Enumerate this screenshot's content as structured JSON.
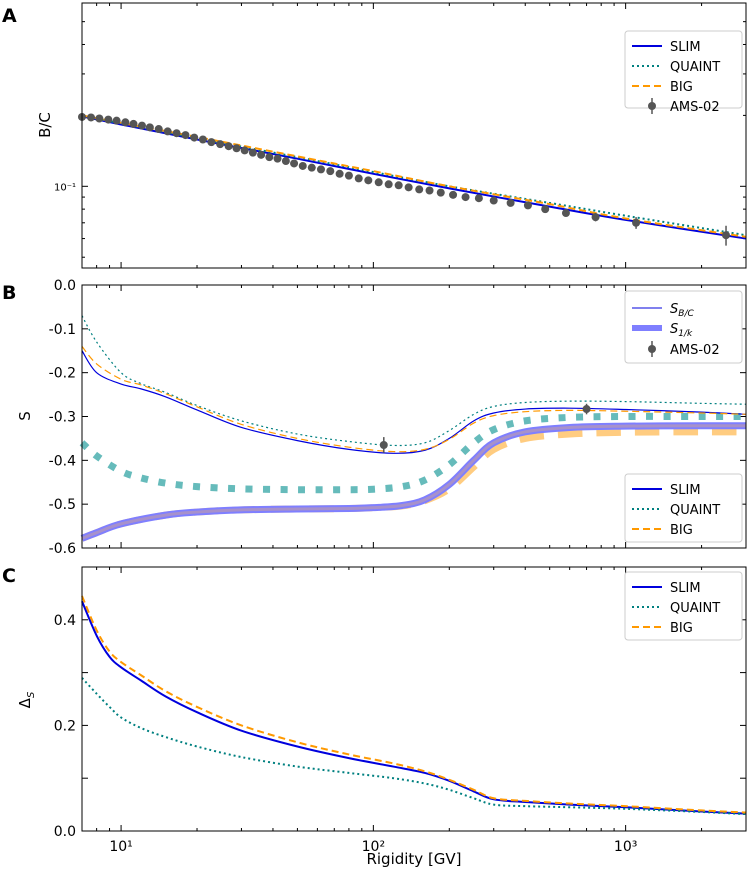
{
  "colors": {
    "slim": "#0000dd",
    "quaint": "#008080",
    "big": "#ff9900",
    "ams": "#555555",
    "s1k_slim": "#7f7fff",
    "s1k_quaint": "#66bbbb",
    "s1k_big": "#ffcc80"
  },
  "chart_data": [
    {
      "panel": "A",
      "type": "line",
      "title": "",
      "xlabel": "",
      "ylabel": "B/C",
      "xscale": "log",
      "yscale": "log",
      "xlim": [
        7,
        3000
      ],
      "ylim": [
        0.045,
        0.6
      ],
      "ytick_labels": [
        "10⁻¹"
      ],
      "legend": {
        "placement": "top-right",
        "entries": [
          "SLIM",
          "QUAINT",
          "BIG",
          "AMS-02"
        ]
      },
      "series": [
        {
          "name": "SLIM",
          "style": "solid",
          "x": [
            7,
            10,
            20,
            50,
            100,
            200,
            500,
            1000,
            3000
          ],
          "y": [
            0.198,
            0.183,
            0.158,
            0.131,
            0.113,
            0.098,
            0.082,
            0.072,
            0.06
          ]
        },
        {
          "name": "QUAINT",
          "style": "dotted",
          "x": [
            7,
            10,
            20,
            50,
            100,
            200,
            500,
            1000,
            3000
          ],
          "y": [
            0.199,
            0.185,
            0.16,
            0.133,
            0.115,
            0.1,
            0.085,
            0.075,
            0.062
          ]
        },
        {
          "name": "BIG",
          "style": "dashed",
          "x": [
            7,
            10,
            20,
            50,
            100,
            200,
            500,
            1000,
            3000
          ],
          "y": [
            0.2,
            0.186,
            0.162,
            0.134,
            0.116,
            0.1,
            0.084,
            0.073,
            0.061
          ]
        }
      ],
      "points": {
        "name": "AMS-02",
        "x": [
          7.0,
          7.6,
          8.2,
          8.9,
          9.6,
          10.4,
          11.2,
          12.1,
          13.0,
          14.1,
          15.3,
          16.6,
          18.0,
          19.5,
          21.1,
          22.8,
          24.7,
          26.7,
          28.7,
          30.9,
          33.3,
          35.9,
          38.7,
          41.7,
          45.0,
          48.5,
          52.5,
          57.0,
          62.0,
          67.5,
          73.5,
          80.0,
          87.5,
          95.5,
          105,
          115,
          126,
          138,
          152,
          167,
          185,
          207,
          232,
          262,
          300,
          350,
          410,
          480,
          580,
          760,
          1100,
          2500
        ],
        "y": [
          0.197,
          0.196,
          0.194,
          0.192,
          0.19,
          0.187,
          0.184,
          0.181,
          0.178,
          0.175,
          0.171,
          0.168,
          0.165,
          0.161,
          0.158,
          0.154,
          0.151,
          0.148,
          0.145,
          0.142,
          0.139,
          0.136,
          0.133,
          0.131,
          0.128,
          0.125,
          0.122,
          0.12,
          0.118,
          0.116,
          0.113,
          0.111,
          0.108,
          0.106,
          0.104,
          0.102,
          0.101,
          0.099,
          0.097,
          0.096,
          0.094,
          0.092,
          0.09,
          0.089,
          0.087,
          0.085,
          0.083,
          0.08,
          0.077,
          0.074,
          0.07,
          0.062
        ],
        "yerr": [
          0.002,
          0.002,
          0.002,
          0.002,
          0.002,
          0.002,
          0.002,
          0.002,
          0.002,
          0.002,
          0.002,
          0.002,
          0.002,
          0.002,
          0.002,
          0.002,
          0.002,
          0.002,
          0.002,
          0.002,
          0.002,
          0.002,
          0.002,
          0.002,
          0.002,
          0.002,
          0.002,
          0.002,
          0.002,
          0.002,
          0.002,
          0.002,
          0.002,
          0.002,
          0.002,
          0.002,
          0.002,
          0.002,
          0.002,
          0.002,
          0.002,
          0.002,
          0.002,
          0.002,
          0.002,
          0.002,
          0.002,
          0.002,
          0.002,
          0.003,
          0.004,
          0.006
        ]
      }
    },
    {
      "panel": "B",
      "type": "line",
      "title": "",
      "xlabel": "",
      "ylabel": "S",
      "xscale": "log",
      "yscale": "linear",
      "xlim": [
        7,
        3000
      ],
      "ylim": [
        -0.6,
        0.0
      ],
      "ytick_labels": [
        "0.0",
        "-0.1",
        "-0.2",
        "-0.3",
        "-0.4",
        "-0.5",
        "-0.6"
      ],
      "legend_top": {
        "placement": "top-right",
        "entries": [
          "S_B/C",
          "S_1/k",
          "AMS-02"
        ],
        "sub_bc": "B/C",
        "sub_1k": "1/k"
      },
      "legend_bottom": {
        "placement": "bottom-right",
        "entries": [
          "SLIM",
          "QUAINT",
          "BIG"
        ]
      },
      "series_sbc": [
        {
          "name": "SLIM",
          "style": "solid",
          "x": [
            7,
            8,
            10,
            12,
            15,
            20,
            30,
            50,
            80,
            120,
            160,
            200,
            250,
            300,
            400,
            600,
            1000,
            2000,
            3000
          ],
          "y": [
            -0.15,
            -0.2,
            -0.226,
            -0.237,
            -0.255,
            -0.285,
            -0.325,
            -0.355,
            -0.375,
            -0.384,
            -0.377,
            -0.35,
            -0.31,
            -0.292,
            -0.283,
            -0.281,
            -0.284,
            -0.29,
            -0.295
          ]
        },
        {
          "name": "QUAINT",
          "style": "dotted",
          "x": [
            7,
            8,
            10,
            12,
            15,
            20,
            30,
            50,
            80,
            120,
            160,
            200,
            250,
            300,
            400,
            600,
            1000,
            2000,
            3000
          ],
          "y": [
            -0.07,
            -0.13,
            -0.2,
            -0.225,
            -0.245,
            -0.275,
            -0.31,
            -0.34,
            -0.357,
            -0.366,
            -0.36,
            -0.332,
            -0.295,
            -0.277,
            -0.268,
            -0.265,
            -0.266,
            -0.27,
            -0.272
          ]
        },
        {
          "name": "BIG",
          "style": "dashed",
          "x": [
            7,
            8,
            10,
            12,
            15,
            20,
            30,
            50,
            80,
            120,
            160,
            200,
            250,
            300,
            400,
            600,
            1000,
            2000,
            3000
          ],
          "y": [
            -0.14,
            -0.18,
            -0.215,
            -0.228,
            -0.248,
            -0.278,
            -0.318,
            -0.35,
            -0.37,
            -0.38,
            -0.375,
            -0.352,
            -0.315,
            -0.298,
            -0.289,
            -0.286,
            -0.288,
            -0.292,
            -0.295
          ]
        }
      ],
      "series_s1k": [
        {
          "name": "SLIM",
          "style": "solid",
          "x": [
            7,
            8,
            10,
            15,
            20,
            30,
            50,
            80,
            100,
            130,
            160,
            200,
            250,
            300,
            400,
            600,
            1000,
            2000,
            3000
          ],
          "y": [
            -0.578,
            -0.565,
            -0.545,
            -0.525,
            -0.518,
            -0.513,
            -0.511,
            -0.51,
            -0.508,
            -0.503,
            -0.49,
            -0.455,
            -0.4,
            -0.36,
            -0.335,
            -0.325,
            -0.322,
            -0.321,
            -0.321
          ]
        },
        {
          "name": "QUAINT",
          "style": "dotted",
          "x": [
            7,
            8,
            10,
            12,
            15,
            20,
            30,
            50,
            80,
            100,
            130,
            160,
            200,
            250,
            300,
            400,
            600,
            1000,
            2000,
            3000
          ],
          "y": [
            -0.36,
            -0.39,
            -0.425,
            -0.44,
            -0.452,
            -0.46,
            -0.465,
            -0.467,
            -0.467,
            -0.466,
            -0.46,
            -0.445,
            -0.41,
            -0.36,
            -0.33,
            -0.31,
            -0.302,
            -0.3,
            -0.3,
            -0.3
          ]
        },
        {
          "name": "BIG",
          "style": "dashed",
          "x": [
            7,
            8,
            10,
            15,
            20,
            30,
            50,
            80,
            100,
            130,
            160,
            200,
            250,
            300,
            400,
            600,
            1000,
            2000,
            3000
          ],
          "y": [
            -0.578,
            -0.565,
            -0.545,
            -0.525,
            -0.518,
            -0.513,
            -0.511,
            -0.51,
            -0.508,
            -0.504,
            -0.492,
            -0.465,
            -0.415,
            -0.375,
            -0.35,
            -0.34,
            -0.336,
            -0.335,
            -0.335
          ]
        }
      ],
      "points": {
        "name": "AMS-02",
        "x": [
          110,
          700
        ],
        "y": [
          -0.365,
          -0.283
        ],
        "yerr": [
          0.018,
          0.012
        ]
      }
    },
    {
      "panel": "C",
      "type": "line",
      "title": "",
      "xlabel": "Rigidity [GV]",
      "ylabel": "Δ",
      "ylabel_sub": "S",
      "xscale": "log",
      "yscale": "linear",
      "xlim": [
        7,
        3000
      ],
      "ylim": [
        0.0,
        0.5
      ],
      "ytick_labels": [
        "0.0",
        "0.2",
        "0.4"
      ],
      "xtick_labels": [
        "10¹",
        "10²",
        "10³"
      ],
      "legend": {
        "placement": "top-right",
        "entries": [
          "SLIM",
          "QUAINT",
          "BIG"
        ]
      },
      "series": [
        {
          "name": "SLIM",
          "style": "solid",
          "x": [
            7,
            8,
            9,
            10,
            12,
            15,
            20,
            30,
            50,
            80,
            120,
            160,
            200,
            250,
            300,
            400,
            600,
            1000,
            2000,
            3000
          ],
          "y": [
            0.435,
            0.37,
            0.33,
            0.31,
            0.285,
            0.255,
            0.225,
            0.19,
            0.16,
            0.138,
            0.122,
            0.11,
            0.095,
            0.075,
            0.06,
            0.055,
            0.05,
            0.045,
            0.037,
            0.033
          ]
        },
        {
          "name": "QUAINT",
          "style": "dotted",
          "x": [
            7,
            8,
            9,
            10,
            12,
            15,
            20,
            30,
            50,
            80,
            120,
            160,
            200,
            250,
            300,
            400,
            600,
            1000,
            2000,
            3000
          ],
          "y": [
            0.29,
            0.26,
            0.235,
            0.215,
            0.195,
            0.178,
            0.16,
            0.14,
            0.122,
            0.11,
            0.1,
            0.09,
            0.078,
            0.062,
            0.05,
            0.047,
            0.045,
            0.042,
            0.036,
            0.032
          ]
        },
        {
          "name": "BIG",
          "style": "dashed",
          "x": [
            7,
            8,
            9,
            10,
            12,
            15,
            20,
            30,
            50,
            80,
            120,
            160,
            200,
            250,
            300,
            400,
            600,
            1000,
            2000,
            3000
          ],
          "y": [
            0.445,
            0.38,
            0.34,
            0.32,
            0.295,
            0.265,
            0.235,
            0.2,
            0.168,
            0.145,
            0.128,
            0.113,
            0.097,
            0.078,
            0.062,
            0.057,
            0.052,
            0.047,
            0.039,
            0.035
          ]
        }
      ]
    }
  ]
}
